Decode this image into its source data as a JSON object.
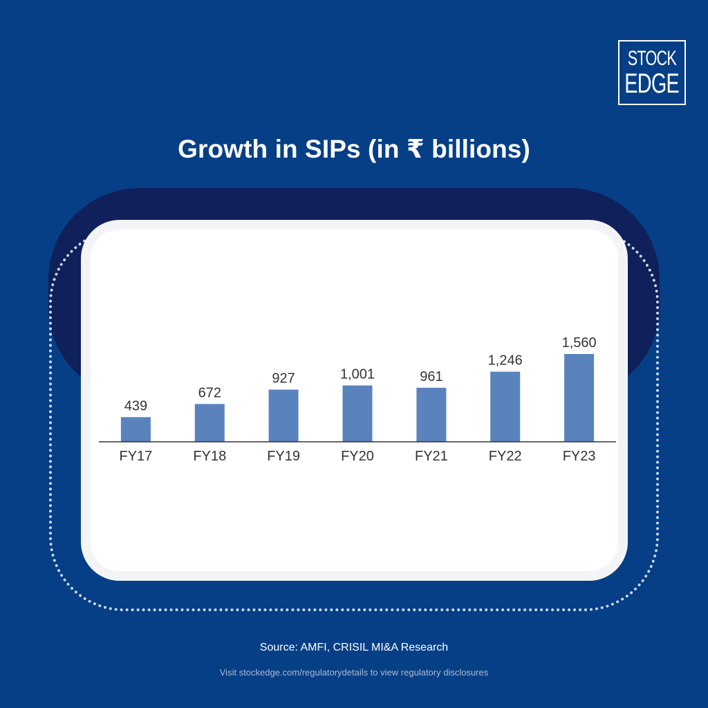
{
  "logo": {
    "line1": "STOCK",
    "line2": "EDGE"
  },
  "colors": {
    "background": "#063f86",
    "dark_band": "#10205b",
    "bar": "#5a83be",
    "axis": "#333333",
    "text": "#333333"
  },
  "chart_data": {
    "type": "bar",
    "title": "Growth in SIPs (in ₹ billions)",
    "categories": [
      "FY17",
      "FY18",
      "FY19",
      "FY20",
      "FY21",
      "FY22",
      "FY23"
    ],
    "values": [
      439,
      672,
      927,
      1001,
      961,
      1246,
      1560
    ],
    "value_labels": [
      "439",
      "672",
      "927",
      "1,001",
      "961",
      "1,246",
      "1,560"
    ],
    "xlabel": "",
    "ylabel": "",
    "ylim": [
      0,
      1560
    ],
    "grid": false,
    "legend": "none"
  },
  "footer": {
    "source": "Source: AMFI, CRISIL MI&A Research",
    "disclaimer": "Visit stockedge.com/regulatorydetails to view regulatory disclosures"
  }
}
